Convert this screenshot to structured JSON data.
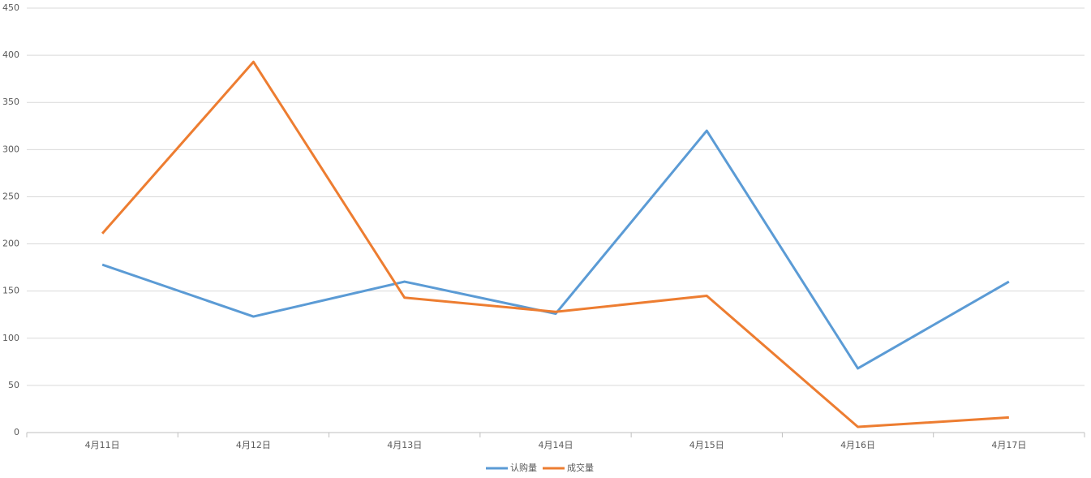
{
  "chart_data": {
    "type": "line",
    "categories": [
      "4月11日",
      "4月12日",
      "4月13日",
      "4月14日",
      "4月15日",
      "4月16日",
      "4月17日"
    ],
    "series": [
      {
        "name": "认购量",
        "color": "#5b9bd5",
        "values": [
          178,
          123,
          160,
          126,
          320,
          68,
          160
        ]
      },
      {
        "name": "成交量",
        "color": "#ed7d31",
        "values": [
          211,
          393,
          143,
          128,
          145,
          6,
          16
        ]
      }
    ],
    "ylim": [
      0,
      450
    ],
    "yticks": [
      0,
      50,
      100,
      150,
      200,
      250,
      300,
      350,
      400,
      450
    ],
    "grid": true,
    "legend": "bottom"
  }
}
